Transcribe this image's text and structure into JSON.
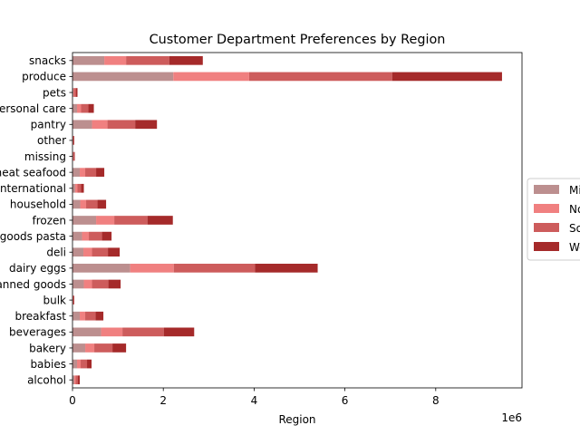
{
  "chart_data": {
    "type": "bar",
    "orientation": "horizontal",
    "stacked": true,
    "title": "Customer Department Preferences by Region",
    "xlabel": "Region",
    "ylabel": "",
    "x_offset_label": "1e6",
    "xlim": [
      0,
      9.9
    ],
    "xticks": [
      0,
      2,
      4,
      6,
      8
    ],
    "xtick_labels": [
      "0",
      "2",
      "4",
      "6",
      "8"
    ],
    "legend_position": "center-right",
    "categories": [
      "alcohol",
      "babies",
      "bakery",
      "beverages",
      "breakfast",
      "bulk",
      "canned goods",
      "dairy eggs",
      "deli",
      "dry goods pasta",
      "frozen",
      "household",
      "international",
      "meat seafood",
      "missing",
      "other",
      "pantry",
      "personal care",
      "pets",
      "produce",
      "snacks"
    ],
    "series": [
      {
        "name": "Midwest",
        "color": "#bc8f8f",
        "values": [
          0.04,
          0.1,
          0.28,
          0.63,
          0.16,
          0.01,
          0.25,
          1.27,
          0.24,
          0.21,
          0.52,
          0.17,
          0.06,
          0.16,
          0.01,
          0.01,
          0.43,
          0.1,
          0.02,
          2.22,
          0.7
        ]
      },
      {
        "name": "Northeast",
        "color": "#f08080",
        "values": [
          0.03,
          0.08,
          0.2,
          0.47,
          0.12,
          0.01,
          0.18,
          0.96,
          0.19,
          0.15,
          0.4,
          0.13,
          0.05,
          0.12,
          0.01,
          0.01,
          0.34,
          0.09,
          0.02,
          1.67,
          0.48
        ]
      },
      {
        "name": "South",
        "color": "#cd5c5c",
        "values": [
          0.05,
          0.14,
          0.4,
          0.91,
          0.23,
          0.01,
          0.36,
          1.79,
          0.35,
          0.29,
          0.73,
          0.25,
          0.08,
          0.24,
          0.02,
          0.01,
          0.61,
          0.16,
          0.04,
          3.15,
          0.95
        ]
      },
      {
        "name": "West",
        "color": "#a52a2a",
        "values": [
          0.04,
          0.1,
          0.3,
          0.67,
          0.17,
          0.01,
          0.27,
          1.38,
          0.26,
          0.21,
          0.56,
          0.19,
          0.06,
          0.18,
          0.01,
          0.01,
          0.48,
          0.12,
          0.03,
          2.42,
          0.74
        ]
      }
    ]
  }
}
